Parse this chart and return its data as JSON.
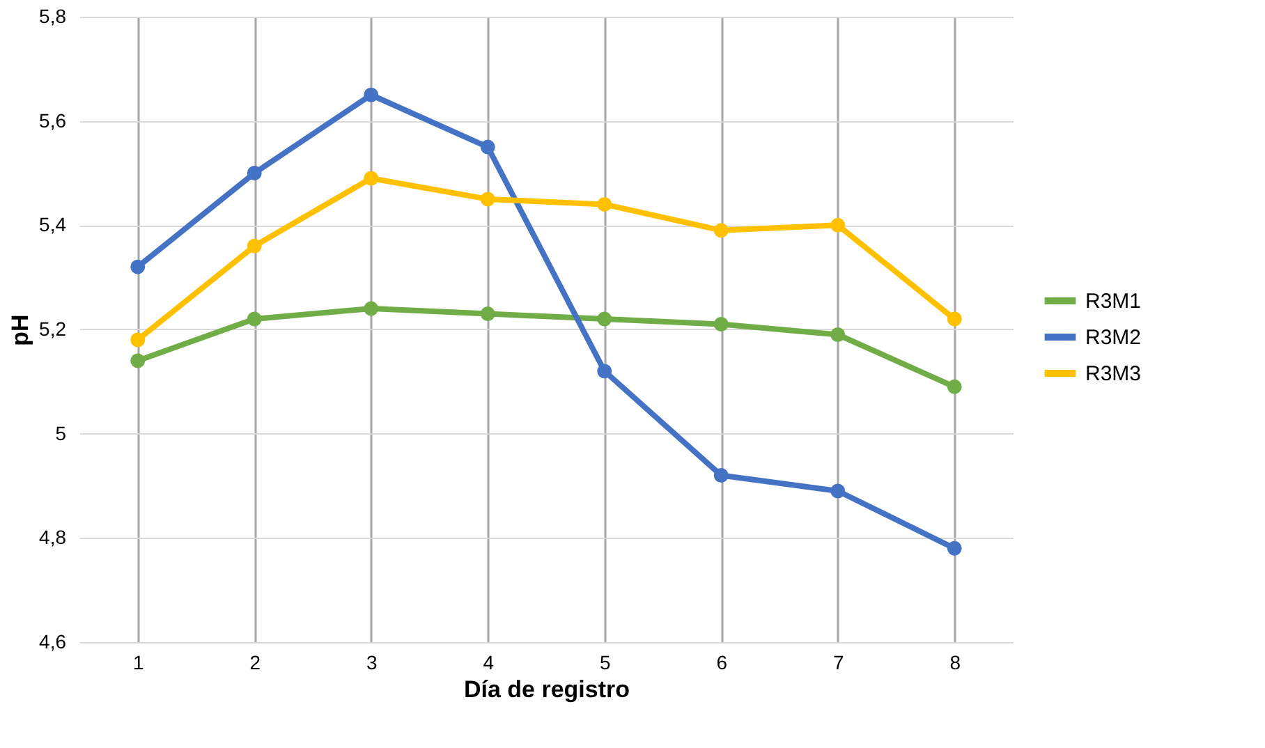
{
  "chart_data": {
    "type": "line",
    "xlabel": "Día de registro",
    "ylabel": "pH",
    "categories": [
      "1",
      "2",
      "3",
      "4",
      "5",
      "6",
      "7",
      "8"
    ],
    "series": [
      {
        "name": "R3M1",
        "color": "#70ad47",
        "values": [
          5.14,
          5.22,
          5.24,
          5.23,
          5.22,
          5.21,
          5.19,
          5.09
        ]
      },
      {
        "name": "R3M2",
        "color": "#4472c4",
        "values": [
          5.32,
          5.5,
          5.65,
          5.55,
          5.12,
          4.92,
          4.89,
          4.78
        ]
      },
      {
        "name": "R3M3",
        "color": "#ffc000",
        "values": [
          5.18,
          5.36,
          5.49,
          5.45,
          5.44,
          5.39,
          5.4,
          5.22
        ]
      }
    ],
    "ylim": [
      4.6,
      5.8
    ],
    "yticks": [
      {
        "value": 4.6,
        "label": "4,6"
      },
      {
        "value": 4.8,
        "label": "4,8"
      },
      5,
      {
        "value": 5.2,
        "label": "5,2"
      },
      {
        "value": 5.4,
        "label": "5,4"
      },
      {
        "value": 5.6,
        "label": "5,6"
      },
      {
        "value": 5.8,
        "label": "5,8"
      }
    ],
    "grid": true,
    "legend": "right",
    "marker": "circle",
    "line_style": "solid"
  }
}
